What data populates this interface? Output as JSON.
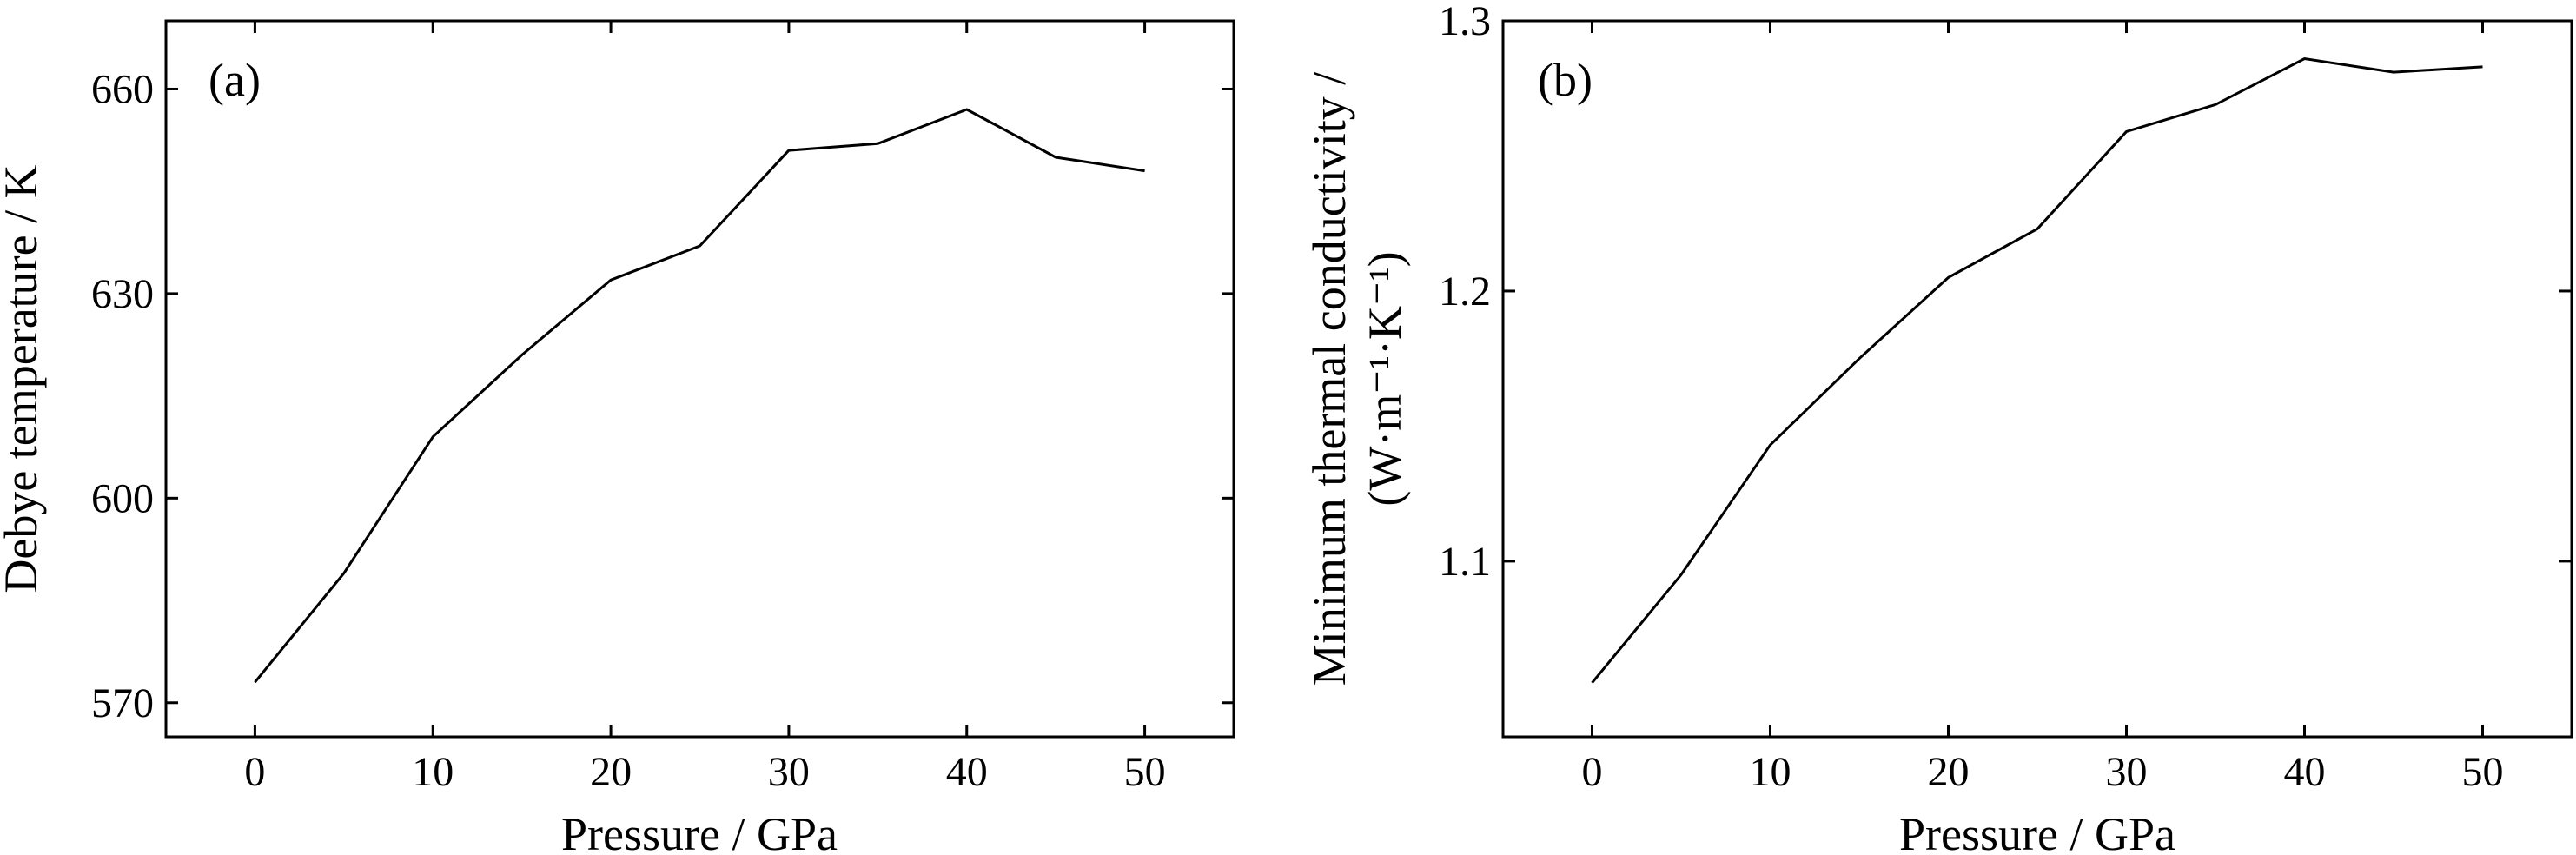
{
  "chart_data": [
    {
      "type": "line",
      "panel_label": "(a)",
      "xlabel": "Pressure / GPa",
      "ylabel": "Debye temperature / K",
      "xlim": [
        -5,
        55
      ],
      "ylim": [
        565,
        670
      ],
      "xticks": [
        0,
        10,
        20,
        30,
        40,
        50
      ],
      "xtick_labels": [
        "0",
        "10",
        "20",
        "30",
        "40",
        "50"
      ],
      "yticks": [
        570,
        600,
        630,
        660
      ],
      "ytick_labels": [
        "570",
        "600",
        "630",
        "660"
      ],
      "series": [
        {
          "x": [
            0,
            5,
            10,
            15,
            20,
            25,
            30,
            35,
            40,
            45,
            50
          ],
          "y": [
            573,
            589,
            609,
            621,
            632,
            637,
            651,
            652,
            657,
            650,
            648
          ]
        }
      ]
    },
    {
      "type": "line",
      "panel_label": "(b)",
      "xlabel": "Pressure / GPa",
      "ylabel_line1": "Minimum thermal conductivity /",
      "ylabel_line2": "(W·m⁻¹·K⁻¹)",
      "xlim": [
        -5,
        55
      ],
      "ylim": [
        1.035,
        1.3
      ],
      "xticks": [
        0,
        10,
        20,
        30,
        40,
        50
      ],
      "xtick_labels": [
        "0",
        "10",
        "20",
        "30",
        "40",
        "50"
      ],
      "yticks": [
        1.1,
        1.2,
        1.3
      ],
      "ytick_labels": [
        "1.1",
        "1.2",
        "1.3"
      ],
      "series": [
        {
          "x": [
            0,
            5,
            10,
            15,
            20,
            25,
            30,
            35,
            40,
            45,
            50
          ],
          "y": [
            1.055,
            1.095,
            1.143,
            1.175,
            1.205,
            1.223,
            1.259,
            1.269,
            1.286,
            1.281,
            1.283
          ]
        }
      ]
    }
  ]
}
